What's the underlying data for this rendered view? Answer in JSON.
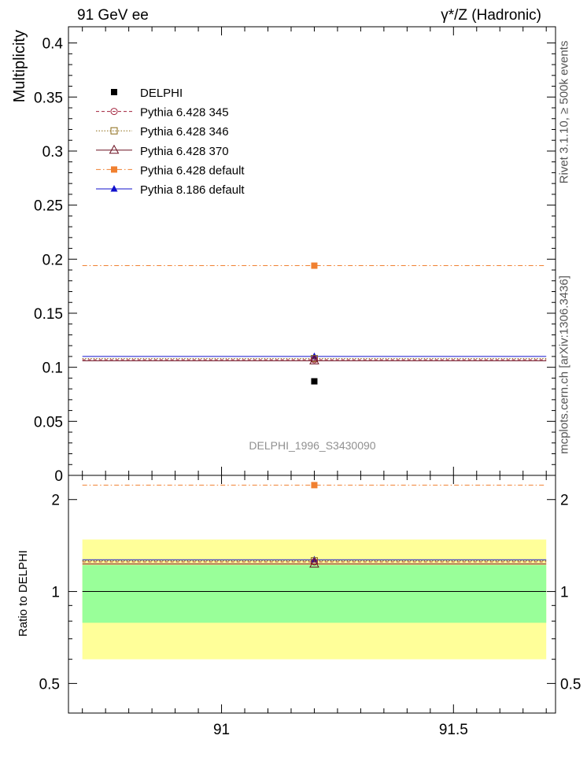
{
  "header": {
    "left": "91 GeV ee",
    "right": "γ*/Z (Hadronic)"
  },
  "side_text": {
    "rivet": "Rivet 3.1.10, ≥ 500k events",
    "mcplots": "mcplots.cern.ch [arXiv:1306.3436]"
  },
  "colors": {
    "delphi": "#000000",
    "p345": "#a0203a",
    "p346": "#8b6a14",
    "p370": "#6b1020",
    "pdefault": "#f08030",
    "p8": "#1010cc",
    "band_inner": "#99ff99",
    "band_outer": "#ffff99"
  },
  "chart_data": [
    {
      "type": "scatter",
      "title": "",
      "xlabel": "",
      "ylabel": "Multiplicity",
      "xlim": [
        90.67,
        91.72
      ],
      "ylim": [
        0,
        0.415
      ],
      "yticks": [
        0,
        0.05,
        0.1,
        0.15,
        0.2,
        0.25,
        0.3,
        0.35,
        0.4
      ],
      "ytick_labels": [
        "0",
        "0.05",
        "0.1",
        "0.15",
        "0.2",
        "0.25",
        "0.3",
        "0.35",
        "0.4"
      ],
      "watermark": "DELPHI_1996_S3430090",
      "x_bin": [
        90.7,
        91.7
      ],
      "x_center": 91.2,
      "series": [
        {
          "name": "DELPHI",
          "y": 0.087,
          "marker": "square-filled",
          "line": "none",
          "color_key": "delphi"
        },
        {
          "name": "Pythia 6.428 345",
          "y": 0.107,
          "marker": "circle-open",
          "line": "dashed",
          "color_key": "p345"
        },
        {
          "name": "Pythia 6.428 346",
          "y": 0.108,
          "marker": "square-open",
          "line": "dotted",
          "color_key": "p346"
        },
        {
          "name": "Pythia 6.428 370",
          "y": 0.106,
          "marker": "triangle-open",
          "line": "solid",
          "color_key": "p370"
        },
        {
          "name": "Pythia 6.428 default",
          "y": 0.194,
          "marker": "square-filled",
          "line": "dashdot",
          "color_key": "pdefault"
        },
        {
          "name": "Pythia 8.186 default",
          "y": 0.11,
          "marker": "triangle-filled",
          "line": "solid",
          "color_key": "p8"
        }
      ]
    },
    {
      "type": "scatter",
      "ylabel": "Ratio to DELPHI",
      "xlim": [
        90.67,
        91.72
      ],
      "ylim": [
        0.4,
        2.4
      ],
      "yscale": "log",
      "yticks": [
        0.5,
        1,
        2
      ],
      "ytick_labels": [
        "0.5",
        "1",
        "2"
      ],
      "xticks": [
        91,
        91.5
      ],
      "xtick_labels": [
        "91",
        "91.5"
      ],
      "band_inner": [
        0.79,
        1.22
      ],
      "band_outer": [
        0.6,
        1.48
      ],
      "series": [
        {
          "name": "Pythia 6.428 345",
          "y": 1.25,
          "color_key": "p345"
        },
        {
          "name": "Pythia 6.428 346",
          "y": 1.26,
          "color_key": "p346"
        },
        {
          "name": "Pythia 6.428 370",
          "y": 1.23,
          "color_key": "p370"
        },
        {
          "name": "Pythia 6.428 default",
          "y": 2.23,
          "color_key": "pdefault"
        },
        {
          "name": "Pythia 8.186 default",
          "y": 1.27,
          "color_key": "p8"
        }
      ]
    }
  ]
}
